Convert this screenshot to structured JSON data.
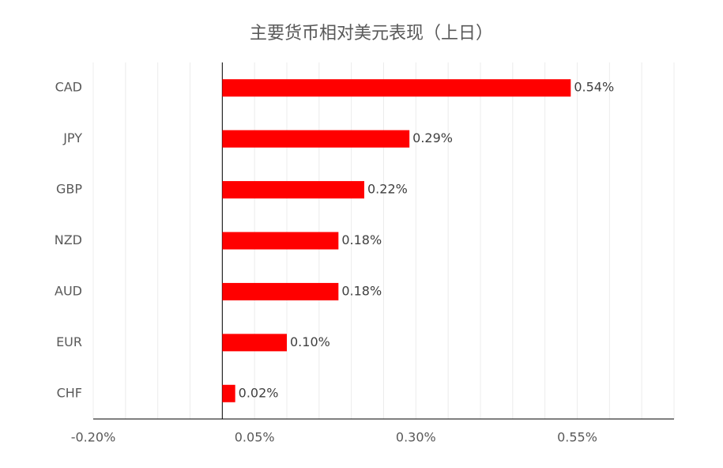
{
  "chart_data": {
    "type": "hbar",
    "title": "主要货币相对美元表现（上日）",
    "categories": [
      "CAD",
      "JPY",
      "GBP",
      "NZD",
      "AUD",
      "EUR",
      "CHF"
    ],
    "values": [
      0.54,
      0.29,
      0.22,
      0.18,
      0.18,
      0.1,
      0.02
    ],
    "value_labels": [
      "0.54%",
      "0.29%",
      "0.22%",
      "0.18%",
      "0.18%",
      "0.10%",
      "0.02%"
    ],
    "color": "#ff0000",
    "xlim": [
      -0.2,
      0.7
    ],
    "xticks": [
      {
        "value": -0.2,
        "label": "-0.20%"
      },
      {
        "value": 0.05,
        "label": "0.05%"
      },
      {
        "value": 0.3,
        "label": "0.30%"
      },
      {
        "value": 0.55,
        "label": "0.55%"
      }
    ],
    "xgrid": [
      -0.2,
      -0.15,
      -0.1,
      -0.05,
      0,
      0.05,
      0.1,
      0.15,
      0.2,
      0.25,
      0.3,
      0.35,
      0.4,
      0.45,
      0.5,
      0.55,
      0.6,
      0.65,
      0.7
    ],
    "grid": true
  }
}
